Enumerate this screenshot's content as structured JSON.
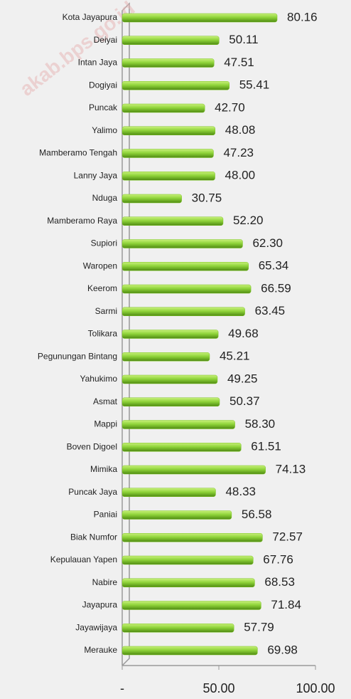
{
  "chart_data": {
    "type": "bar",
    "orientation": "horizontal",
    "categories": [
      "Kota Jayapura",
      "Deiyai",
      "Intan Jaya",
      "Dogiyai",
      "Puncak",
      "Yalimo",
      "Mamberamo Tengah",
      "Lanny Jaya",
      "Nduga",
      "Mamberamo Raya",
      "Supiori",
      "Waropen",
      "Keerom",
      "Sarmi",
      "Tolikara",
      "Pegunungan Bintang",
      "Yahukimo",
      "Asmat",
      "Mappi",
      "Boven Digoel",
      "Mimika",
      "Puncak Jaya",
      "Paniai",
      "Biak Numfor",
      "Kepulauan Yapen",
      "Nabire",
      "Jayapura",
      "Jayawijaya",
      "Merauke"
    ],
    "values": [
      80.16,
      50.11,
      47.51,
      55.41,
      42.7,
      48.08,
      47.23,
      48,
      30.75,
      52.2,
      62.3,
      65.34,
      66.59,
      63.45,
      49.68,
      45.21,
      49.25,
      50.37,
      58.3,
      61.51,
      74.13,
      48.33,
      56.58,
      72.57,
      67.76,
      68.53,
      71.84,
      57.79,
      69.98
    ],
    "value_labels": [
      "80.16",
      "50.11",
      "47.51",
      "55.41",
      "42.70",
      "48.08",
      "47.23",
      "48.00",
      "30.75",
      "52.20",
      "62.30",
      "65.34",
      "66.59",
      "63.45",
      "49.68",
      "45.21",
      "49.25",
      "50.37",
      "58.30",
      "61.51",
      "74.13",
      "48.33",
      "56.58",
      "72.57",
      "67.76",
      "68.53",
      "71.84",
      "57.79",
      "69.98"
    ],
    "color": "#7cc424",
    "xlim": [
      0,
      100
    ],
    "xticks": [
      {
        "value": 0,
        "label": "-"
      },
      {
        "value": 50,
        "label": "50.00"
      },
      {
        "value": 100,
        "label": "100.00"
      }
    ],
    "watermark": "akab.bps.go.id"
  }
}
